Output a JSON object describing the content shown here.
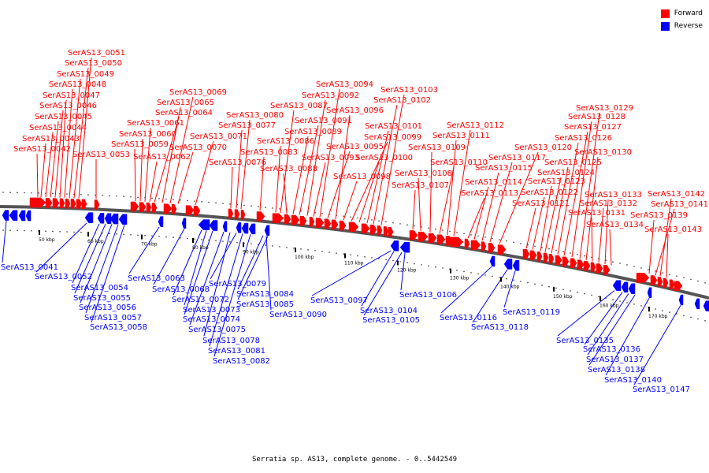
{
  "caption": "Serratia sp. AS13, complete genome. - 0..5442549",
  "legend": [
    {
      "label": "Forward",
      "color": "#ff0000"
    },
    {
      "label": "Reverse",
      "color": "#0000ff"
    }
  ],
  "colors": {
    "forward": "#ff0000",
    "reverse": "#0000ff",
    "backbone": "#555555"
  },
  "ticks": [
    "50 kbp",
    "60 kbp",
    "70 kbp",
    "80 kbp",
    "90 kbp",
    "100 kbp",
    "110 kbp",
    "120 kbp",
    "130 kbp",
    "140 kbp",
    "150 kbp",
    "160 kbp",
    "170 kbp"
  ],
  "forward_labels": [
    "SerAS13_0042",
    "SerAS13_0043",
    "SerAS13_0044",
    "SerAS13_0045",
    "SerAS13_0046",
    "SerAS13_0047",
    "SerAS13_0048",
    "SerAS13_0049",
    "SerAS13_0050",
    "SerAS13_0051",
    "SerAS13_0053",
    "SerAS13_0059",
    "SerAS13_0060",
    "SerAS13_0061",
    "SerAS13_0062",
    "SerAS13_0064",
    "SerAS13_0065",
    "SerAS13_0069",
    "SerAS13_0070",
    "SerAS13_0071",
    "SerAS13_0076",
    "SerAS13_0077",
    "SerAS13_0080",
    "SerAS13_0083",
    "SerAS13_0086",
    "SerAS13_0087",
    "SerAS13_0088",
    "SerAS13_0089",
    "SerAS13_0091",
    "SerAS13_0092",
    "SerAS13_0093",
    "SerAS13_0094",
    "SerAS13_0095",
    "SerAS13_0096",
    "SerAS13_0098",
    "SerAS13_0099",
    "SerAS13_0100",
    "SerAS13_0101",
    "SerAS13_0102",
    "SerAS13_0103",
    "SerAS13_0107",
    "SerAS13_0108",
    "SerAS13_0109",
    "SerAS13_0110",
    "SerAS13_0111",
    "SerAS13_0112",
    "SerAS13_0113",
    "SerAS13_0114",
    "SerAS13_0115",
    "SerAS13_0117",
    "SerAS13_0120",
    "SerAS13_0121",
    "SerAS13_0122",
    "SerAS13_0123",
    "SerAS13_0124",
    "SerAS13_0125",
    "SerAS13_0126",
    "SerAS13_0127",
    "SerAS13_0128",
    "SerAS13_0129",
    "SerAS13_0130",
    "SerAS13_0131",
    "SerAS13_0132",
    "SerAS13_0133",
    "SerAS13_0134",
    "SerAS13_0139",
    "SerAS13_0141",
    "SerAS13_0142",
    "SerAS13_0143"
  ],
  "reverse_labels": [
    "SerAS13_0041",
    "SerAS13_0052",
    "SerAS13_0054",
    "SerAS13_0055",
    "SerAS13_0056",
    "SerAS13_0057",
    "SerAS13_0058",
    "SerAS13_0063",
    "SerAS13_0068",
    "SerAS13_0072",
    "SerAS13_0073",
    "SerAS13_0074",
    "SerAS13_0075",
    "SerAS13_0078",
    "SerAS13_0079",
    "SerAS13_0081",
    "SerAS13_0082",
    "SerAS13_0084",
    "SerAS13_0085",
    "SerAS13_0090",
    "SerAS13_0097",
    "SerAS13_0104",
    "SerAS13_0105",
    "SerAS13_0106",
    "SerAS13_0116",
    "SerAS13_0118",
    "SerAS13_0119",
    "SerAS13_0135",
    "SerAS13_0136",
    "SerAS13_0137",
    "SerAS13_0138",
    "SerAS13_0140",
    "SerAS13_0147"
  ]
}
